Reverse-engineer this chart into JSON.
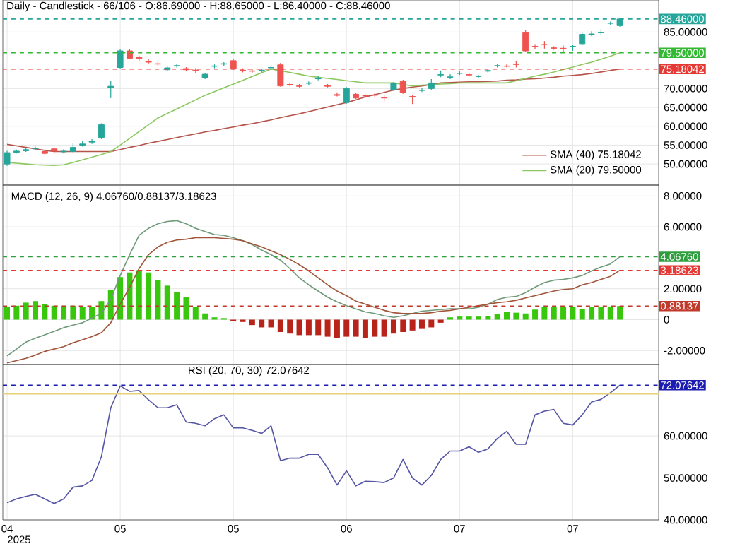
{
  "chart_data": [
    {
      "type": "candlestick",
      "title": "Daily - Candlestick - 66/106 - O:86.69000 - H:88.65000 - L:86.40000 - C:88.46000",
      "categories": [
        "04",
        null,
        null,
        null,
        null,
        null,
        null,
        null,
        null,
        null,
        null,
        null,
        "05",
        null,
        null,
        null,
        null,
        null,
        null,
        null,
        null,
        null,
        null,
        null,
        "05",
        null,
        null,
        null,
        null,
        null,
        null,
        null,
        null,
        null,
        null,
        null,
        "06",
        null,
        null,
        null,
        null,
        null,
        null,
        null,
        null,
        null,
        null,
        null,
        "07",
        null,
        null,
        null,
        null,
        null,
        null,
        null,
        null,
        null,
        null,
        null,
        "07",
        null,
        null,
        null,
        null,
        null
      ],
      "ohlc": [
        [
          50,
          53.5,
          49.5,
          53
        ],
        [
          53.1,
          53.8,
          52.8,
          53.4
        ],
        [
          53.5,
          54.2,
          53.2,
          53.8
        ],
        [
          54.0,
          54.6,
          53.6,
          54.2
        ],
        [
          53.3,
          53.7,
          52.3,
          52.8
        ],
        [
          54.0,
          54.4,
          53.0,
          53.4
        ],
        [
          53.2,
          53.9,
          52.8,
          53.4
        ],
        [
          53.3,
          55.6,
          53.0,
          54.4
        ],
        [
          55.0,
          56.0,
          54.6,
          55.3
        ],
        [
          55.8,
          56.6,
          55.3,
          56.1
        ],
        [
          57,
          60.8,
          56.6,
          60.4
        ],
        [
          70.2,
          72,
          67.5,
          70.6
        ],
        [
          75.6,
          80.5,
          75.2,
          80
        ],
        [
          80,
          80.5,
          77.8,
          78
        ],
        [
          78.3,
          78.8,
          77.4,
          78
        ],
        [
          77.2,
          77.8,
          76.6,
          77
        ],
        [
          76.6,
          77.2,
          76,
          76.5
        ],
        [
          75,
          75.8,
          74.6,
          75.5
        ],
        [
          76,
          76.6,
          75.6,
          76.1
        ],
        [
          75.3,
          75.7,
          74.6,
          75
        ],
        [
          74.9,
          75.4,
          74.2,
          74.8
        ],
        [
          72.8,
          74.0,
          72.5,
          73.8
        ],
        [
          75.9,
          76.4,
          75.4,
          76
        ],
        [
          76.5,
          77,
          76,
          76.6
        ],
        [
          77.4,
          77.8,
          75,
          75.2
        ],
        [
          74.9,
          75.4,
          74.3,
          74.8
        ],
        [
          74.7,
          75.3,
          74.2,
          74.6
        ],
        [
          74.8,
          75.3,
          74.3,
          74.9
        ],
        [
          75.5,
          76.2,
          75,
          75.6
        ],
        [
          76.3,
          76.8,
          70.5,
          70.7
        ],
        [
          71.1,
          71.6,
          70.6,
          71
        ],
        [
          70.7,
          71.2,
          70.3,
          70.6
        ],
        [
          71.4,
          71.9,
          71,
          71.5
        ],
        [
          72.6,
          73.2,
          72.2,
          72.7
        ],
        [
          70.8,
          71.2,
          70.3,
          70.6
        ],
        [
          68.4,
          69,
          67.9,
          68.2
        ],
        [
          66.3,
          70.4,
          66,
          70
        ],
        [
          68.5,
          68.9,
          67.2,
          67.5
        ],
        [
          68.1,
          68.5,
          67.6,
          68
        ],
        [
          68.3,
          68.8,
          67.8,
          68.2
        ],
        [
          67.7,
          68.2,
          66.6,
          67.5
        ],
        [
          69.6,
          71.7,
          69.4,
          71.5
        ],
        [
          71.9,
          72.3,
          68.6,
          68.9
        ],
        [
          67.9,
          68.2,
          65.9,
          67.8
        ],
        [
          69.5,
          70.1,
          69.1,
          69.6
        ],
        [
          70,
          72.5,
          69.6,
          71.5
        ],
        [
          73.6,
          74.8,
          73,
          73.7
        ],
        [
          73,
          73.8,
          72.5,
          73.1
        ],
        [
          74.0,
          74.6,
          73.6,
          74.1
        ],
        [
          73.7,
          74.2,
          73.2,
          73.6
        ],
        [
          73.2,
          73.6,
          72.7,
          73.3
        ],
        [
          74.6,
          75.3,
          74.3,
          74.8
        ],
        [
          76,
          76.6,
          75.6,
          76.1
        ],
        [
          76,
          76.5,
          75.6,
          75.9
        ],
        [
          76.5,
          77.4,
          75.6,
          76.4
        ],
        [
          84.8,
          85.6,
          79.8,
          80
        ],
        [
          81.2,
          81.8,
          80.4,
          81.1
        ],
        [
          81.7,
          82.6,
          80.6,
          81.6
        ],
        [
          80.8,
          81.2,
          80.3,
          80.7
        ],
        [
          80.7,
          81.4,
          79.6,
          80.6
        ],
        [
          81.1,
          81.6,
          80,
          81.2
        ],
        [
          81.9,
          84.8,
          81.6,
          84.4
        ],
        [
          84.4,
          85.2,
          83.9,
          84.5
        ],
        [
          84.8,
          85.8,
          84.3,
          84.9
        ],
        [
          87.3,
          87.8,
          86.9,
          87.4
        ],
        [
          86.69,
          88.65,
          86.4,
          88.46
        ]
      ],
      "colors": [
        "#26a69a",
        "#26a69a",
        "#26a69a",
        "#26a69a",
        "#ef5350",
        "#ef5350",
        "#26a69a",
        "#26a69a",
        "#26a69a",
        "#26a69a",
        "#26a69a",
        "#26a69a",
        "#26a69a",
        "#ef5350",
        "#ef5350",
        "#ef5350",
        "#ef5350",
        "#26a69a",
        "#26a69a",
        "#ef5350",
        "#ef5350",
        "#26a69a",
        "#26a69a",
        "#26a69a",
        "#ef5350",
        "#ef5350",
        "#ef5350",
        "#26a69a",
        "#26a69a",
        "#ef5350",
        "#ef5350",
        "#ef5350",
        "#26a69a",
        "#26a69a",
        "#ef5350",
        "#ef5350",
        "#26a69a",
        "#ef5350",
        "#ef5350",
        "#ef5350",
        "#ef5350",
        "#26a69a",
        "#ef5350",
        "#ef5350",
        "#26a69a",
        "#26a69a",
        "#26a69a",
        "#26a69a",
        "#26a69a",
        "#ef5350",
        "#26a69a",
        "#26a69a",
        "#26a69a",
        "#ef5350",
        "#ef5350",
        "#ef5350",
        "#ef5350",
        "#ef5350",
        "#ef5350",
        "#ef5350",
        "#26a69a",
        "#26a69a",
        "#26a69a",
        "#26a69a",
        "#26a69a",
        "#26a69a"
      ],
      "series": [
        {
          "name": "SMA (40)  75.18042",
          "type": "line",
          "color": "#b5544a",
          "values": [
            55.2,
            54.8,
            54.4,
            54.0,
            53.6,
            53.3,
            53.3,
            53.3,
            53.3,
            53.3,
            53.3,
            53.3,
            53.8,
            54.4,
            54.9,
            55.5,
            56.0,
            56.5,
            57.0,
            57.5,
            58.0,
            58.5,
            58.9,
            59.4,
            59.8,
            60.3,
            60.7,
            61.2,
            61.7,
            62.3,
            62.8,
            63.3,
            63.9,
            64.5,
            65.1,
            65.7,
            66.3,
            67.0,
            67.8,
            68.4,
            69.0,
            69.6,
            70.0,
            70.4,
            70.7,
            71.1,
            71.5,
            71.6,
            71.7,
            71.8,
            71.8,
            71.9,
            72.0,
            72.2,
            72.3,
            72.5,
            72.6,
            72.8,
            73.0,
            73.3,
            73.5,
            73.7,
            74.0,
            74.4,
            74.8,
            75.18
          ]
        },
        {
          "name": "SMA (20)  79.50000",
          "type": "line",
          "color": "#8cc85f",
          "values": [
            50.4,
            50.2,
            50.0,
            49.8,
            49.7,
            49.6,
            49.8,
            50.4,
            51.1,
            51.8,
            52.5,
            53.3,
            55.0,
            56.8,
            58.6,
            60.4,
            62.2,
            63.4,
            64.6,
            65.8,
            67.0,
            68.2,
            69.2,
            70.2,
            71.2,
            72.2,
            73.2,
            74.2,
            75.2,
            74.7,
            74.3,
            73.8,
            73.3,
            73.0,
            72.7,
            72.4,
            72.1,
            71.8,
            71.5,
            71.5,
            71.5,
            71.5,
            71.1,
            70.7,
            70.9,
            71.0,
            71.2,
            71.3,
            71.5,
            71.5,
            71.5,
            71.5,
            71.5,
            71.5,
            72.1,
            72.7,
            73.3,
            73.8,
            74.4,
            75.1,
            75.7,
            76.4,
            77.0,
            77.8,
            78.6,
            79.5
          ]
        }
      ],
      "ylim": [
        44.4,
        93.5
      ],
      "yticks": [
        {
          "value": 50,
          "label": "50.00000"
        },
        {
          "value": 55,
          "label": "55.00000"
        },
        {
          "value": 60,
          "label": "60.00000"
        },
        {
          "value": 65,
          "label": "65.00000"
        },
        {
          "value": 70,
          "label": "70.00000"
        },
        {
          "value": 85,
          "label": "85.00000"
        }
      ],
      "ref_lines": [
        {
          "axis": "y",
          "value": 88.46,
          "label": "88.46000",
          "color": "#26a69a",
          "line_style": "dashed"
        },
        {
          "axis": "y",
          "value": 79.5,
          "label": "79.50000",
          "color": "#33b833",
          "line_style": "dashed"
        },
        {
          "axis": "y",
          "value": 75.18042,
          "label": "75.18042",
          "color": "#e53935",
          "line_style": "dashed"
        }
      ],
      "grid": true,
      "legend": "bottom right",
      "tick_labels": "y"
    },
    {
      "type": "bar",
      "title": "MACD (12, 26, 9)   4.06760/0.88137/3.18623",
      "categories": [
        "04",
        null,
        null,
        null,
        null,
        null,
        null,
        null,
        null,
        null,
        null,
        null,
        "05",
        null,
        null,
        null,
        null,
        null,
        null,
        null,
        null,
        null,
        null,
        null,
        "05",
        null,
        null,
        null,
        null,
        null,
        null,
        null,
        null,
        null,
        null,
        null,
        "06",
        null,
        null,
        null,
        null,
        null,
        null,
        null,
        null,
        null,
        null,
        null,
        "07",
        null,
        null,
        null,
        null,
        null,
        null,
        null,
        null,
        null,
        null,
        null,
        "07",
        null,
        null,
        null,
        null,
        null
      ],
      "series": [
        {
          "type": "bar",
          "values": [
            0.85,
            0.9,
            1.1,
            1.2,
            1.0,
            0.9,
            0.9,
            0.9,
            0.8,
            0.8,
            1.2,
            1.9,
            2.75,
            3.05,
            3.2,
            3.05,
            2.55,
            2.2,
            1.8,
            1.45,
            0.8,
            0.4,
            0.15,
            0.1,
            -0.1,
            -0.15,
            -0.35,
            -0.5,
            -0.5,
            -0.8,
            -0.9,
            -1.0,
            -1.0,
            -1.0,
            -1.1,
            -1.2,
            -1.1,
            -1.1,
            -1.2,
            -1.1,
            -1.1,
            -0.9,
            -0.8,
            -0.7,
            -0.6,
            -0.5,
            -0.2,
            0.15,
            0.2,
            0.2,
            0.2,
            0.25,
            0.35,
            0.5,
            0.45,
            0.4,
            0.65,
            0.8,
            0.8,
            0.8,
            0.8,
            0.7,
            0.8,
            0.8,
            0.85,
            0.88
          ],
          "colors": [
            "#39c70e",
            "#39c70e",
            "#39c70e",
            "#39c70e",
            "#39c70e",
            "#39c70e",
            "#39c70e",
            "#39c70e",
            "#39c70e",
            "#39c70e",
            "#39c70e",
            "#39c70e",
            "#39c70e",
            "#39c70e",
            "#39c70e",
            "#39c70e",
            "#39c70e",
            "#39c70e",
            "#39c70e",
            "#39c70e",
            "#39c70e",
            "#39c70e",
            "#39c70e",
            "#39c70e",
            "#b8231a",
            "#b8231a",
            "#b8231a",
            "#b8231a",
            "#b8231a",
            "#b8231a",
            "#b8231a",
            "#b8231a",
            "#b8231a",
            "#b8231a",
            "#b8231a",
            "#b8231a",
            "#b8231a",
            "#b8231a",
            "#b8231a",
            "#b8231a",
            "#b8231a",
            "#b8231a",
            "#b8231a",
            "#b8231a",
            "#b8231a",
            "#b8231a",
            "#b8231a",
            "#39c70e",
            "#39c70e",
            "#39c70e",
            "#39c70e",
            "#39c70e",
            "#39c70e",
            "#39c70e",
            "#39c70e",
            "#39c70e",
            "#39c70e",
            "#39c70e",
            "#39c70e",
            "#39c70e",
            "#39c70e",
            "#39c70e",
            "#39c70e",
            "#39c70e",
            "#39c70e",
            "#39c70e"
          ]
        },
        {
          "type": "line",
          "color": "#6f9a7a",
          "values": [
            -2.35,
            -1.9,
            -1.45,
            -1.2,
            -0.98,
            -0.75,
            -0.52,
            -0.35,
            -0.2,
            0.1,
            0.4,
            1.3,
            2.85,
            4.2,
            5.45,
            5.9,
            6.2,
            6.35,
            6.4,
            6.2,
            5.9,
            5.7,
            5.5,
            5.45,
            5.3,
            5.1,
            4.85,
            4.5,
            4.2,
            3.85,
            3.3,
            2.7,
            2.25,
            1.85,
            1.45,
            1.15,
            0.9,
            0.7,
            0.5,
            0.4,
            0.25,
            0.15,
            0.25,
            0.4,
            0.55,
            0.6,
            0.65,
            0.7,
            0.7,
            0.7,
            0.8,
            1.0,
            1.3,
            1.45,
            1.5,
            1.75,
            2.1,
            2.4,
            2.55,
            2.6,
            2.7,
            2.85,
            3.15,
            3.4,
            3.6,
            4.07
          ]
        },
        {
          "type": "line",
          "color": "#a0553a",
          "values": [
            -2.8,
            -2.65,
            -2.5,
            -2.3,
            -2.05,
            -1.9,
            -1.75,
            -1.5,
            -1.3,
            -1.1,
            -0.85,
            -0.2,
            1.0,
            2.1,
            3.3,
            4.2,
            4.7,
            5.0,
            5.15,
            5.2,
            5.3,
            5.3,
            5.3,
            5.25,
            5.2,
            5.1,
            4.9,
            4.7,
            4.45,
            4.2,
            3.9,
            3.55,
            3.15,
            2.7,
            2.25,
            1.85,
            1.55,
            1.2,
            1.0,
            0.8,
            0.6,
            0.45,
            0.4,
            0.4,
            0.4,
            0.45,
            0.55,
            0.6,
            0.7,
            0.8,
            0.9,
            1.0,
            1.1,
            1.15,
            1.25,
            1.4,
            1.55,
            1.7,
            1.85,
            1.95,
            2.0,
            2.25,
            2.4,
            2.6,
            2.8,
            3.19
          ]
        }
      ],
      "ylim": [
        -2.9,
        8.7
      ],
      "yticks": [
        {
          "value": -2,
          "label": "-2.00000"
        },
        0,
        {
          "value": 2,
          "label": "2.00000"
        },
        {
          "value": 6,
          "label": "6.00000"
        },
        {
          "value": 8,
          "label": "8.00000"
        }
      ],
      "ref_lines": [
        {
          "axis": "y",
          "value": 4.0676,
          "label": "4.06760",
          "color": "#2e9e3e",
          "line_style": "dashed"
        },
        {
          "axis": "y",
          "value": 3.18623,
          "label": "3.18623",
          "color": "#e53935",
          "line_style": "dashed"
        },
        {
          "axis": "y",
          "value": 0.88137,
          "label": "0.88137",
          "color": "#c0392b",
          "line_style": "dashed"
        }
      ],
      "grid": true,
      "tick_labels": "y"
    },
    {
      "type": "line",
      "title": "RSI (20, 70, 30)   72.07642",
      "categories": [
        "04",
        null,
        null,
        null,
        null,
        null,
        null,
        null,
        null,
        null,
        null,
        null,
        "05",
        null,
        null,
        null,
        null,
        null,
        null,
        null,
        null,
        null,
        null,
        null,
        "05",
        null,
        null,
        null,
        null,
        null,
        null,
        null,
        null,
        null,
        null,
        null,
        "06",
        null,
        null,
        null,
        null,
        null,
        null,
        null,
        null,
        null,
        null,
        null,
        "07",
        null,
        null,
        null,
        null,
        null,
        null,
        null,
        null,
        null,
        null,
        null,
        "07",
        null,
        null,
        null,
        null,
        null
      ],
      "series": [
        {
          "color": "#5555a5",
          "values": [
            44.1,
            45,
            45.6,
            46.1,
            45,
            43.9,
            45,
            47.8,
            48.1,
            49.4,
            55,
            66.7,
            71.9,
            70.6,
            70.8,
            68.6,
            66.7,
            66.7,
            67.4,
            63.3,
            63,
            62.4,
            64.1,
            65,
            61.9,
            61.9,
            61.3,
            60.6,
            62.4,
            54.1,
            54.7,
            54.7,
            55.6,
            55.6,
            52.4,
            48.3,
            51.7,
            48.1,
            49.2,
            49.1,
            48.9,
            50,
            54.4,
            50,
            48.3,
            50.6,
            54.4,
            56.4,
            56.4,
            57.4,
            56.1,
            56.9,
            59.4,
            61.1,
            58,
            58,
            65,
            65.9,
            66.3,
            63,
            62.6,
            65,
            68.1,
            68.7,
            70.3,
            72.08
          ]
        }
      ],
      "ylim": [
        40,
        77
      ],
      "yticks": [
        {
          "value": 40,
          "label": "40.00000"
        },
        {
          "value": 50,
          "label": "50.00000"
        },
        {
          "value": 60,
          "label": "60.00000"
        }
      ],
      "ref_lines": [
        {
          "axis": "y",
          "value": 70,
          "color": "#e6d27a",
          "line_style": "solid"
        },
        {
          "axis": "y",
          "value": 72.07642,
          "label": "72.07642",
          "color": "#1c1cb0",
          "line_style": "dashed"
        }
      ],
      "grid": true,
      "annotations": [
        "2025"
      ]
    }
  ]
}
